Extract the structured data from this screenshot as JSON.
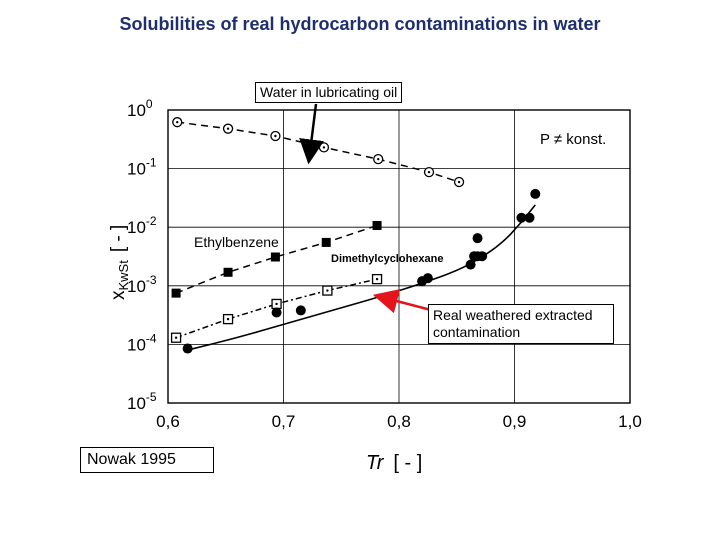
{
  "page": {
    "title": "Solubilities of real hydrocarbon contaminations in water"
  },
  "callouts": {
    "water_in_oil": "Water in lubricating oil",
    "real_weathered": "Real weathered extracted contamination",
    "source": "Nowak 1995"
  },
  "chart_data": {
    "type": "scatter",
    "title": "",
    "xlabel": "Tr",
    "xlabel_unit": "[ - ]",
    "ylabel": "x",
    "ylabel_sub": "KwSt",
    "ylabel_unit": "[ - ]",
    "annotation": "P ≠ konst.",
    "xlim": [
      0.6,
      1.0
    ],
    "ylim": [
      1e-05,
      1
    ],
    "yscale": "log",
    "grid": true,
    "x_ticks": [
      "0,6",
      "0,7",
      "0,8",
      "0,9",
      "1,0"
    ],
    "y_ticks": [
      {
        "base": "10",
        "exp": "0"
      },
      {
        "base": "10",
        "exp": "-1"
      },
      {
        "base": "10",
        "exp": "-2"
      },
      {
        "base": "10",
        "exp": "-3"
      },
      {
        "base": "10",
        "exp": "-4"
      },
      {
        "base": "10",
        "exp": "-5"
      }
    ],
    "series": [
      {
        "name": "Water in lubricating oil",
        "marker": "circle-dot",
        "line": "dashed",
        "x": [
          0.608,
          0.652,
          0.693,
          0.735,
          0.782,
          0.826,
          0.852
        ],
        "y": [
          0.62,
          0.48,
          0.36,
          0.23,
          0.145,
          0.087,
          0.059
        ]
      },
      {
        "name": "Ethylbenzene",
        "marker": "square-filled",
        "line": "dashed",
        "x": [
          0.607,
          0.652,
          0.693,
          0.737,
          0.781
        ],
        "y": [
          0.00075,
          0.0017,
          0.0031,
          0.0055,
          0.0107
        ]
      },
      {
        "name": "Dimethylcyclohexane",
        "marker": "square-dot",
        "line": "dash-dot",
        "x": [
          0.607,
          0.652,
          0.694,
          0.738,
          0.781
        ],
        "y": [
          0.00013,
          0.00027,
          0.00049,
          0.00083,
          0.0013
        ]
      },
      {
        "name": "Real weathered extracted contamination",
        "marker": "circle-filled",
        "line": "solid",
        "x": [
          0.617,
          0.694,
          0.715,
          0.82,
          0.825,
          0.862,
          0.865,
          0.868,
          0.872,
          0.868,
          0.906,
          0.913,
          0.918
        ],
        "y": [
          8.5e-05,
          0.00035,
          0.00038,
          0.0012,
          0.00135,
          0.0023,
          0.0032,
          0.0032,
          0.0032,
          0.0065,
          0.0145,
          0.0145,
          0.037
        ]
      }
    ],
    "fit_curve": {
      "x": [
        0.617,
        0.66,
        0.7,
        0.74,
        0.78,
        0.82,
        0.85,
        0.87,
        0.89,
        0.905,
        0.918
      ],
      "y": [
        8e-05,
        0.00013,
        0.00022,
        0.00037,
        0.00062,
        0.0011,
        0.0018,
        0.0029,
        0.0055,
        0.0115,
        0.024
      ]
    },
    "colors": {
      "title": "#1d2f6e",
      "real_arrow": "#e3141b",
      "markers": "#000000",
      "grid": "#000000"
    }
  }
}
